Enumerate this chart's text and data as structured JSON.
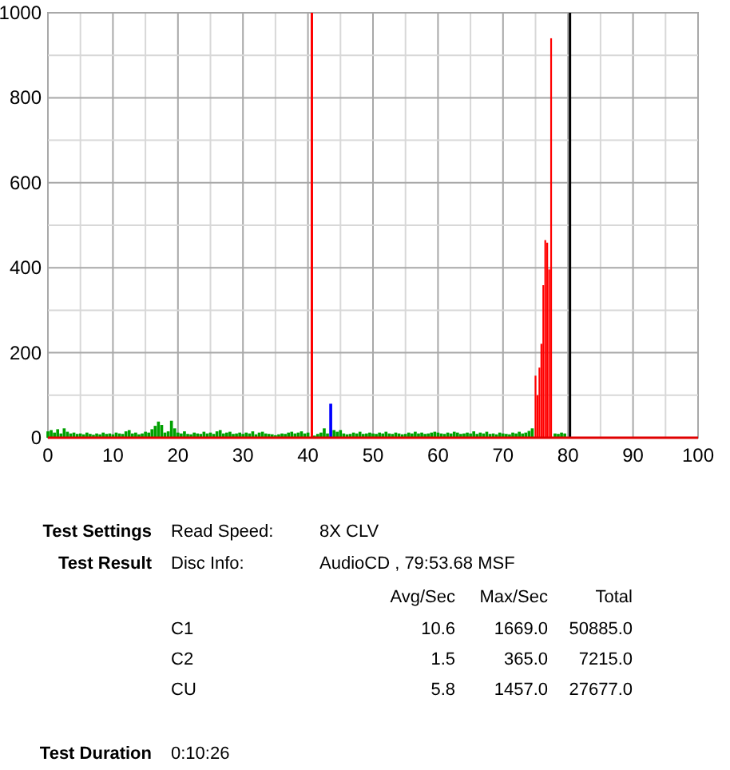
{
  "chart_data": {
    "type": "bar",
    "xlim": [
      0,
      100
    ],
    "ylim": [
      0,
      1000
    ],
    "xticks": [
      0,
      {
        "value": 5,
        "label": null
      },
      10,
      {
        "value": 15,
        "label": null
      },
      20,
      {
        "value": 25,
        "label": null
      },
      30,
      {
        "value": 35,
        "label": null
      },
      40,
      {
        "value": 45,
        "label": null
      },
      50,
      {
        "value": 55,
        "label": null
      },
      60,
      {
        "value": 65,
        "label": null
      },
      70,
      {
        "value": 75,
        "label": null
      },
      80,
      {
        "value": 85,
        "label": null
      },
      90,
      {
        "value": 95,
        "label": null
      },
      100
    ],
    "yticks": [
      0,
      {
        "value": 100,
        "label": null
      },
      200,
      {
        "value": 300,
        "label": null
      },
      400,
      {
        "value": 500,
        "label": null
      },
      600,
      {
        "value": 700,
        "label": null
      },
      800,
      {
        "value": 900,
        "label": null
      },
      1000
    ],
    "grid": true,
    "series": [
      {
        "color": "#00a000",
        "x": [
          0,
          0.5,
          1,
          1.5,
          2,
          2.5,
          3,
          3.5,
          4,
          4.5,
          5,
          5.5,
          6,
          6.5,
          7,
          7.5,
          8,
          8.5,
          9,
          9.5,
          10,
          10.5,
          11,
          11.5,
          12,
          12.5,
          13,
          13.5,
          14,
          14.5,
          15,
          15.5,
          16,
          16.5,
          17,
          17.5,
          18,
          18.5,
          19,
          19.5,
          20,
          20.5,
          21,
          21.5,
          22,
          22.5,
          23,
          23.5,
          24,
          24.5,
          25,
          25.5,
          26,
          26.5,
          27,
          27.5,
          28,
          28.5,
          29,
          29.5,
          30,
          30.5,
          31,
          31.5,
          32,
          32.5,
          33,
          33.5,
          34,
          34.5,
          35,
          35.5,
          36,
          36.5,
          37,
          37.5,
          38,
          38.5,
          39,
          39.5,
          40,
          40.5,
          41,
          41.5,
          42,
          42.5,
          43,
          43.5,
          44,
          44.5,
          45,
          45.5,
          46,
          46.5,
          47,
          47.5,
          48,
          48.5,
          49,
          49.5,
          50,
          50.5,
          51,
          51.5,
          52,
          52.5,
          53,
          53.5,
          54,
          54.5,
          55,
          55.5,
          56,
          56.5,
          57,
          57.5,
          58,
          58.5,
          59,
          59.5,
          60,
          60.5,
          61,
          61.5,
          62,
          62.5,
          63,
          63.5,
          64,
          64.5,
          65,
          65.5,
          66,
          66.5,
          67,
          67.5,
          68,
          68.5,
          69,
          69.5,
          70,
          70.5,
          71,
          71.5,
          72,
          72.5,
          73,
          73.5,
          74,
          74.5,
          75,
          75.5,
          76,
          76.5,
          77,
          77.5,
          78,
          78.5,
          79,
          79.5
        ],
        "values": [
          15,
          18,
          12,
          20,
          10,
          22,
          14,
          10,
          12,
          9,
          10,
          8,
          12,
          9,
          7,
          10,
          8,
          12,
          9,
          10,
          8,
          12,
          10,
          9,
          15,
          18,
          10,
          12,
          8,
          10,
          14,
          12,
          20,
          28,
          38,
          30,
          12,
          15,
          40,
          22,
          12,
          10,
          15,
          9,
          8,
          12,
          10,
          9,
          14,
          10,
          12,
          9,
          15,
          18,
          10,
          12,
          14,
          9,
          10,
          12,
          9,
          12,
          10,
          15,
          8,
          12,
          14,
          10,
          9,
          8,
          6,
          8,
          10,
          9,
          12,
          14,
          10,
          12,
          15,
          10,
          12,
          null,
          5,
          9,
          12,
          22,
          10,
          null,
          18,
          14,
          18,
          10,
          8,
          9,
          12,
          10,
          14,
          9,
          10,
          12,
          10,
          9,
          12,
          10,
          14,
          10,
          9,
          12,
          10,
          8,
          9,
          12,
          10,
          14,
          10,
          12,
          9,
          10,
          12,
          14,
          12,
          10,
          9,
          12,
          10,
          14,
          12,
          9,
          10,
          12,
          10,
          15,
          9,
          12,
          10,
          14,
          9,
          10,
          8,
          12,
          10,
          9,
          8,
          12,
          10,
          14,
          10,
          12,
          16,
          22,
          null,
          null,
          null,
          null,
          null,
          null,
          10,
          9,
          12,
          10
        ]
      },
      {
        "color": "#ff0000",
        "x": [
          75,
          75.3,
          75.6,
          75.9,
          76.2,
          76.5,
          76.8,
          77.1,
          77.4
        ],
        "values": [
          146,
          100,
          165,
          221,
          359,
          465,
          459,
          396,
          940
        ]
      },
      {
        "color": "#0000ff",
        "x": [
          43.5
        ],
        "values": [
          80
        ]
      }
    ],
    "ref_lines": [
      {
        "axis": "x",
        "value": 40.6,
        "color": "#ff0000"
      },
      {
        "axis": "x",
        "value": 80.3,
        "color": "#000000"
      }
    ],
    "annotations": [
      "Test Settings",
      "Read Speed:",
      "8X CLV",
      "Test Result",
      "Disc Info:",
      "AudioCD , 79:53.68 MSF",
      "Avg/Sec",
      "Max/Sec",
      "Total",
      "C1",
      "10.6",
      "1669.0",
      "50885.0",
      "C2",
      "1.5",
      "365.0",
      "7215.0",
      "CU",
      "5.8",
      "1457.0",
      "27677.0",
      "Test Duration",
      "0:10:26"
    ]
  }
}
